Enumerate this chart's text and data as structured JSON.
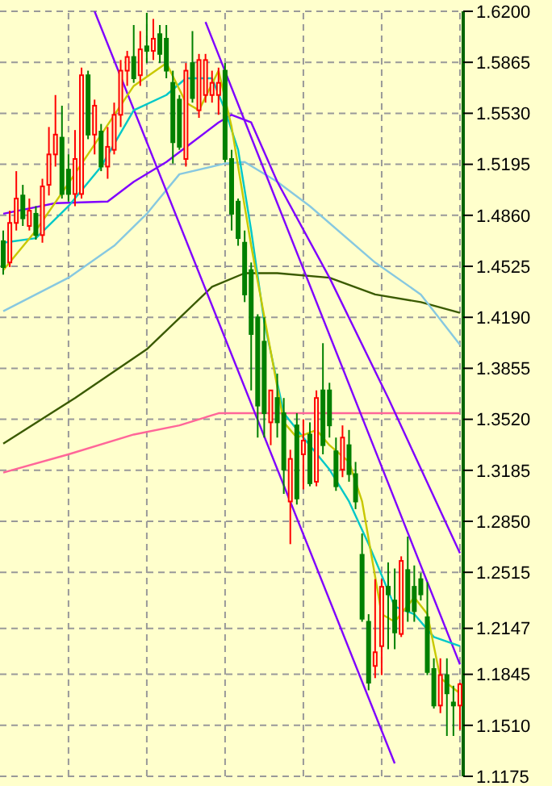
{
  "chart_data": {
    "type": "candlestick",
    "categories": [
      null,
      null,
      null,
      null,
      null,
      null,
      null,
      null,
      null,
      null,
      null,
      null,
      null,
      null,
      null,
      null,
      null,
      null,
      null,
      null,
      null,
      null,
      null,
      null,
      null,
      null,
      null,
      null,
      null,
      null,
      null,
      null,
      null,
      null,
      null,
      null,
      null,
      null,
      null,
      null,
      null,
      null,
      null,
      null,
      null,
      null,
      null,
      null,
      null,
      null,
      null,
      null,
      null,
      null,
      null,
      null,
      null,
      null,
      null,
      null,
      null,
      null,
      null,
      null,
      null,
      null,
      null,
      null,
      null,
      null,
      null
    ],
    "ohlc": [
      [
        1.469,
        1.476,
        1.447,
        1.452
      ],
      [
        1.455,
        1.489,
        1.452,
        1.481
      ],
      [
        1.481,
        1.515,
        1.476,
        1.497
      ],
      [
        1.499,
        1.506,
        1.479,
        1.484
      ],
      [
        1.479,
        1.497,
        1.476,
        1.489
      ],
      [
        1.487,
        1.492,
        1.47,
        1.473
      ],
      [
        1.473,
        1.51,
        1.468,
        1.505
      ],
      [
        1.506,
        1.544,
        1.499,
        1.526
      ],
      [
        1.526,
        1.565,
        1.518,
        1.539
      ],
      [
        1.537,
        1.558,
        1.497,
        1.5
      ],
      [
        1.516,
        1.526,
        1.495,
        1.5
      ],
      [
        1.5,
        1.542,
        1.492,
        1.523
      ],
      [
        1.5,
        1.583,
        1.497,
        1.578
      ],
      [
        1.578,
        1.581,
        1.536,
        1.539
      ],
      [
        1.539,
        1.562,
        1.526,
        1.558
      ],
      [
        1.541,
        1.546,
        1.515,
        1.518
      ],
      [
        1.518,
        1.544,
        1.51,
        1.531
      ],
      [
        1.529,
        1.56,
        1.526,
        1.552
      ],
      [
        1.552,
        1.588,
        1.544,
        1.581
      ],
      [
        1.581,
        1.594,
        1.571,
        1.59
      ],
      [
        1.59,
        1.611,
        1.573,
        1.576
      ],
      [
        1.578,
        1.607,
        1.571,
        1.595
      ],
      [
        1.597,
        1.619,
        1.586,
        1.594
      ],
      [
        1.594,
        1.615,
        1.588,
        1.602
      ],
      [
        1.605,
        1.611,
        1.586,
        1.592
      ],
      [
        1.602,
        1.611,
        1.576,
        1.581
      ],
      [
        1.573,
        1.581,
        1.52,
        1.534
      ],
      [
        1.562,
        1.565,
        1.529,
        1.531
      ],
      [
        1.523,
        1.586,
        1.518,
        1.581
      ],
      [
        1.586,
        1.607,
        1.56,
        1.563
      ],
      [
        1.555,
        1.592,
        1.55,
        1.588
      ],
      [
        1.565,
        1.592,
        1.56,
        1.588
      ],
      [
        1.565,
        1.581,
        1.56,
        1.573
      ],
      [
        1.565,
        1.583,
        1.552,
        1.573
      ],
      [
        1.581,
        1.586,
        1.521,
        1.523
      ],
      [
        1.523,
        1.529,
        1.476,
        1.487
      ],
      [
        1.495,
        1.497,
        1.466,
        1.471
      ],
      [
        1.468,
        1.476,
        1.429,
        1.434
      ],
      [
        1.45,
        1.455,
        1.371,
        1.408
      ],
      [
        1.419,
        1.421,
        1.34,
        1.361
      ],
      [
        1.403,
        1.419,
        1.34,
        1.356
      ],
      [
        1.35,
        1.371,
        1.335,
        1.371
      ],
      [
        1.366,
        1.382,
        1.34,
        1.35
      ],
      [
        1.356,
        1.366,
        1.303,
        1.319
      ],
      [
        1.298,
        1.332,
        1.27,
        1.326
      ],
      [
        1.348,
        1.356,
        1.296,
        1.3
      ],
      [
        1.329,
        1.352,
        1.306,
        1.338
      ],
      [
        1.342,
        1.35,
        1.308,
        1.31
      ],
      [
        1.311,
        1.371,
        1.308,
        1.366
      ],
      [
        1.371,
        1.402,
        1.329,
        1.335
      ],
      [
        1.371,
        1.376,
        1.34,
        1.348
      ],
      [
        1.331,
        1.34,
        1.305,
        1.308
      ],
      [
        1.319,
        1.348,
        1.314,
        1.34
      ],
      [
        1.335,
        1.345,
        1.311,
        1.316
      ],
      [
        1.316,
        1.324,
        1.293,
        1.298
      ],
      [
        1.263,
        1.277,
        1.219,
        1.221
      ],
      [
        1.219,
        1.224,
        1.174,
        1.179
      ],
      [
        1.19,
        1.247,
        1.182,
        1.199
      ],
      [
        1.203,
        1.247,
        1.184,
        1.242
      ],
      [
        1.242,
        1.258,
        1.201,
        1.237
      ],
      [
        1.233,
        1.254,
        1.201,
        1.212
      ],
      [
        1.211,
        1.262,
        1.209,
        1.259
      ],
      [
        1.253,
        1.275,
        1.219,
        1.226
      ],
      [
        1.242,
        1.256,
        1.219,
        1.226
      ],
      [
        1.247,
        1.251,
        1.233,
        1.237
      ],
      [
        1.222,
        1.245,
        1.184,
        1.186
      ],
      [
        1.188,
        1.195,
        1.162,
        1.164
      ],
      [
        1.164,
        1.195,
        1.159,
        1.184
      ],
      [
        1.184,
        1.195,
        1.144,
        1.172
      ],
      [
        1.166,
        1.177,
        1.144,
        1.164
      ],
      [
        1.164,
        1.179,
        1.148,
        1.178
      ]
    ],
    "colors": [
      "#008000",
      "#ff0000",
      "#ff0000",
      "#008000",
      "#ff0000",
      "#008000",
      "#ff0000",
      "#ff0000",
      "#ff0000",
      "#008000",
      "#008000",
      "#ff0000",
      "#ff0000",
      "#008000",
      "#ff0000",
      "#008000",
      "#ff0000",
      "#ff0000",
      "#ff0000",
      "#ff0000",
      "#008000",
      "#ff0000",
      "#008000",
      "#ff0000",
      "#008000",
      "#008000",
      "#008000",
      "#008000",
      "#ff0000",
      "#008000",
      "#ff0000",
      "#ff0000",
      "#ff0000",
      "#ff0000",
      "#008000",
      "#008000",
      "#008000",
      "#008000",
      "#008000",
      "#008000",
      "#008000",
      "#ff0000",
      "#008000",
      "#008000",
      "#ff0000",
      "#008000",
      "#ff0000",
      "#008000",
      "#ff0000",
      "#008000",
      "#008000",
      "#008000",
      "#ff0000",
      "#008000",
      "#008000",
      "#008000",
      "#008000",
      "#ff0000",
      "#ff0000",
      "#008000",
      "#008000",
      "#ff0000",
      "#008000",
      "#008000",
      "#008000",
      "#008000",
      "#008000",
      "#ff0000",
      "#008000",
      "#008000",
      "#ff0000"
    ],
    "series": [
      {
        "type": "line",
        "color": "#ff6699",
        "values": [
          1.317,
          null,
          null,
          null,
          null,
          null,
          null,
          null,
          null,
          null,
          1.329,
          null,
          null,
          null,
          null,
          null,
          null,
          null,
          null,
          null,
          1.342,
          null,
          null,
          null,
          null,
          null,
          null,
          1.348,
          null,
          null,
          null,
          null,
          null,
          1.356,
          null,
          null,
          null,
          1.356,
          null,
          null,
          null,
          null,
          null,
          null,
          null,
          null,
          null,
          null,
          null,
          null,
          null,
          null,
          null,
          null,
          null,
          null,
          null,
          null,
          null,
          null,
          null,
          null,
          null,
          null,
          null,
          null,
          null,
          null,
          null,
          null,
          1.356
        ]
      },
      {
        "type": "line",
        "color": "#3a5a00",
        "values": [
          1.336,
          null,
          null,
          null,
          null,
          null,
          null,
          null,
          null,
          null,
          null,
          1.366,
          null,
          null,
          null,
          null,
          null,
          null,
          null,
          null,
          null,
          null,
          1.398,
          null,
          null,
          null,
          null,
          null,
          null,
          null,
          null,
          null,
          1.439,
          null,
          null,
          null,
          null,
          1.448,
          null,
          null,
          null,
          null,
          1.448,
          null,
          null,
          null,
          null,
          null,
          null,
          null,
          1.445,
          null,
          null,
          null,
          null,
          null,
          null,
          1.434,
          null,
          null,
          null,
          null,
          null,
          null,
          1.429,
          null,
          null,
          null,
          null,
          null,
          1.422
        ]
      },
      {
        "type": "line",
        "color": "#87c8e0",
        "values": [
          1.423,
          null,
          null,
          null,
          null,
          null,
          null,
          null,
          null,
          null,
          1.445,
          null,
          null,
          null,
          null,
          null,
          null,
          1.466,
          null,
          null,
          null,
          null,
          1.487,
          null,
          null,
          null,
          null,
          1.513,
          null,
          null,
          null,
          null,
          null,
          null,
          1.52,
          null,
          null,
          1.521,
          null,
          null,
          null,
          null,
          1.508,
          null,
          null,
          null,
          null,
          1.492,
          null,
          null,
          null,
          null,
          null,
          null,
          null,
          null,
          null,
          1.455,
          null,
          null,
          null,
          null,
          null,
          null,
          1.434,
          null,
          null,
          null,
          null,
          null,
          1.401
        ]
      },
      {
        "type": "line",
        "color": "#7f00ff",
        "values": [
          1.487,
          null,
          null,
          null,
          null,
          null,
          null,
          null,
          1.494,
          null,
          null,
          null,
          null,
          null,
          null,
          null,
          1.495,
          null,
          null,
          null,
          1.508,
          null,
          null,
          null,
          null,
          1.521,
          null,
          null,
          null,
          1.534,
          null,
          null,
          null,
          1.547,
          null,
          1.552,
          null,
          null,
          1.547,
          null,
          null,
          null,
          1.508,
          null,
          null,
          null,
          null,
          null,
          null,
          null,
          1.445,
          null,
          null,
          null,
          null,
          null,
          null,
          null,
          null,
          1.366,
          null,
          null,
          null,
          null,
          null,
          null,
          null,
          null,
          null,
          null,
          1.264
        ]
      },
      {
        "type": "line",
        "color": "#7f00ff",
        "values": [
          null,
          null,
          null,
          null,
          null,
          null,
          null,
          null,
          null,
          null,
          null,
          null,
          null,
          null,
          1.62,
          null,
          null,
          null,
          null,
          null,
          null,
          null,
          null,
          null,
          null,
          null,
          null,
          null,
          null,
          null,
          null,
          null,
          null,
          null,
          null,
          null,
          null,
          null,
          null,
          null,
          null,
          null,
          null,
          null,
          null,
          null,
          null,
          null,
          null,
          null,
          null,
          null,
          null,
          null,
          null,
          null,
          null,
          null,
          null,
          null,
          1.126,
          null,
          null,
          null,
          null,
          null,
          null,
          null,
          null,
          null,
          null
        ]
      },
      {
        "type": "line",
        "color": "#7f00ff",
        "values": [
          null,
          null,
          null,
          null,
          null,
          null,
          null,
          null,
          null,
          null,
          null,
          null,
          null,
          null,
          null,
          null,
          null,
          null,
          null,
          null,
          null,
          null,
          null,
          null,
          null,
          null,
          null,
          null,
          null,
          null,
          null,
          1.613,
          null,
          null,
          null,
          null,
          null,
          null,
          null,
          null,
          null,
          null,
          null,
          null,
          null,
          null,
          null,
          null,
          null,
          null,
          null,
          null,
          null,
          null,
          null,
          null,
          null,
          null,
          null,
          null,
          null,
          null,
          null,
          null,
          null,
          null,
          null,
          null,
          null,
          null,
          1.191
        ]
      },
      {
        "type": "line",
        "color": "#00c8c8",
        "values": [
          1.468,
          null,
          null,
          null,
          null,
          1.471,
          null,
          null,
          null,
          null,
          1.492,
          null,
          null,
          null,
          null,
          1.518,
          null,
          null,
          null,
          null,
          1.555,
          null,
          null,
          null,
          null,
          1.565,
          null,
          null,
          1.576,
          null,
          null,
          null,
          1.576,
          null,
          1.555,
          null,
          1.529,
          null,
          1.476,
          null,
          1.416,
          null,
          null,
          1.356,
          null,
          null,
          1.34,
          null,
          null,
          null,
          1.319,
          null,
          null,
          1.298,
          null,
          null,
          1.27,
          null,
          null,
          null,
          1.229,
          null,
          null,
          1.224,
          null,
          null,
          1.209,
          null,
          null,
          null,
          1.203
        ]
      },
      {
        "type": "line",
        "color": "#c8c800",
        "values": [
          1.45,
          null,
          null,
          null,
          null,
          1.476,
          null,
          null,
          null,
          null,
          1.507,
          null,
          null,
          null,
          null,
          1.539,
          null,
          null,
          null,
          null,
          1.571,
          null,
          null,
          null,
          null,
          1.586,
          null,
          null,
          1.56,
          null,
          1.555,
          null,
          null,
          1.581,
          null,
          1.544,
          null,
          null,
          1.466,
          null,
          null,
          null,
          null,
          1.35,
          null,
          1.34,
          null,
          null,
          1.345,
          null,
          1.335,
          null,
          null,
          1.324,
          null,
          1.298,
          null,
          null,
          1.224,
          null,
          1.219,
          null,
          null,
          1.235,
          null,
          1.224,
          null,
          1.182,
          null,
          null,
          1.172
        ]
      }
    ],
    "ylim": [
      1.1175,
      1.62
    ],
    "yticks": [
      {
        "value": 1.62,
        "label": "1.6200"
      },
      1.5865,
      {
        "value": 1.553,
        "label": "1.5530"
      },
      1.5195,
      {
        "value": 1.486,
        "label": "1.4860"
      },
      1.4525,
      {
        "value": 1.419,
        "label": "1.4190"
      },
      1.3855,
      {
        "value": 1.352,
        "label": "1.3520"
      },
      1.3185,
      {
        "value": 1.285,
        "label": "1.2850"
      },
      1.2515,
      1.2147,
      1.1845,
      {
        "value": 1.151,
        "label": "1.1510"
      },
      1.1175
    ],
    "grid": true
  }
}
